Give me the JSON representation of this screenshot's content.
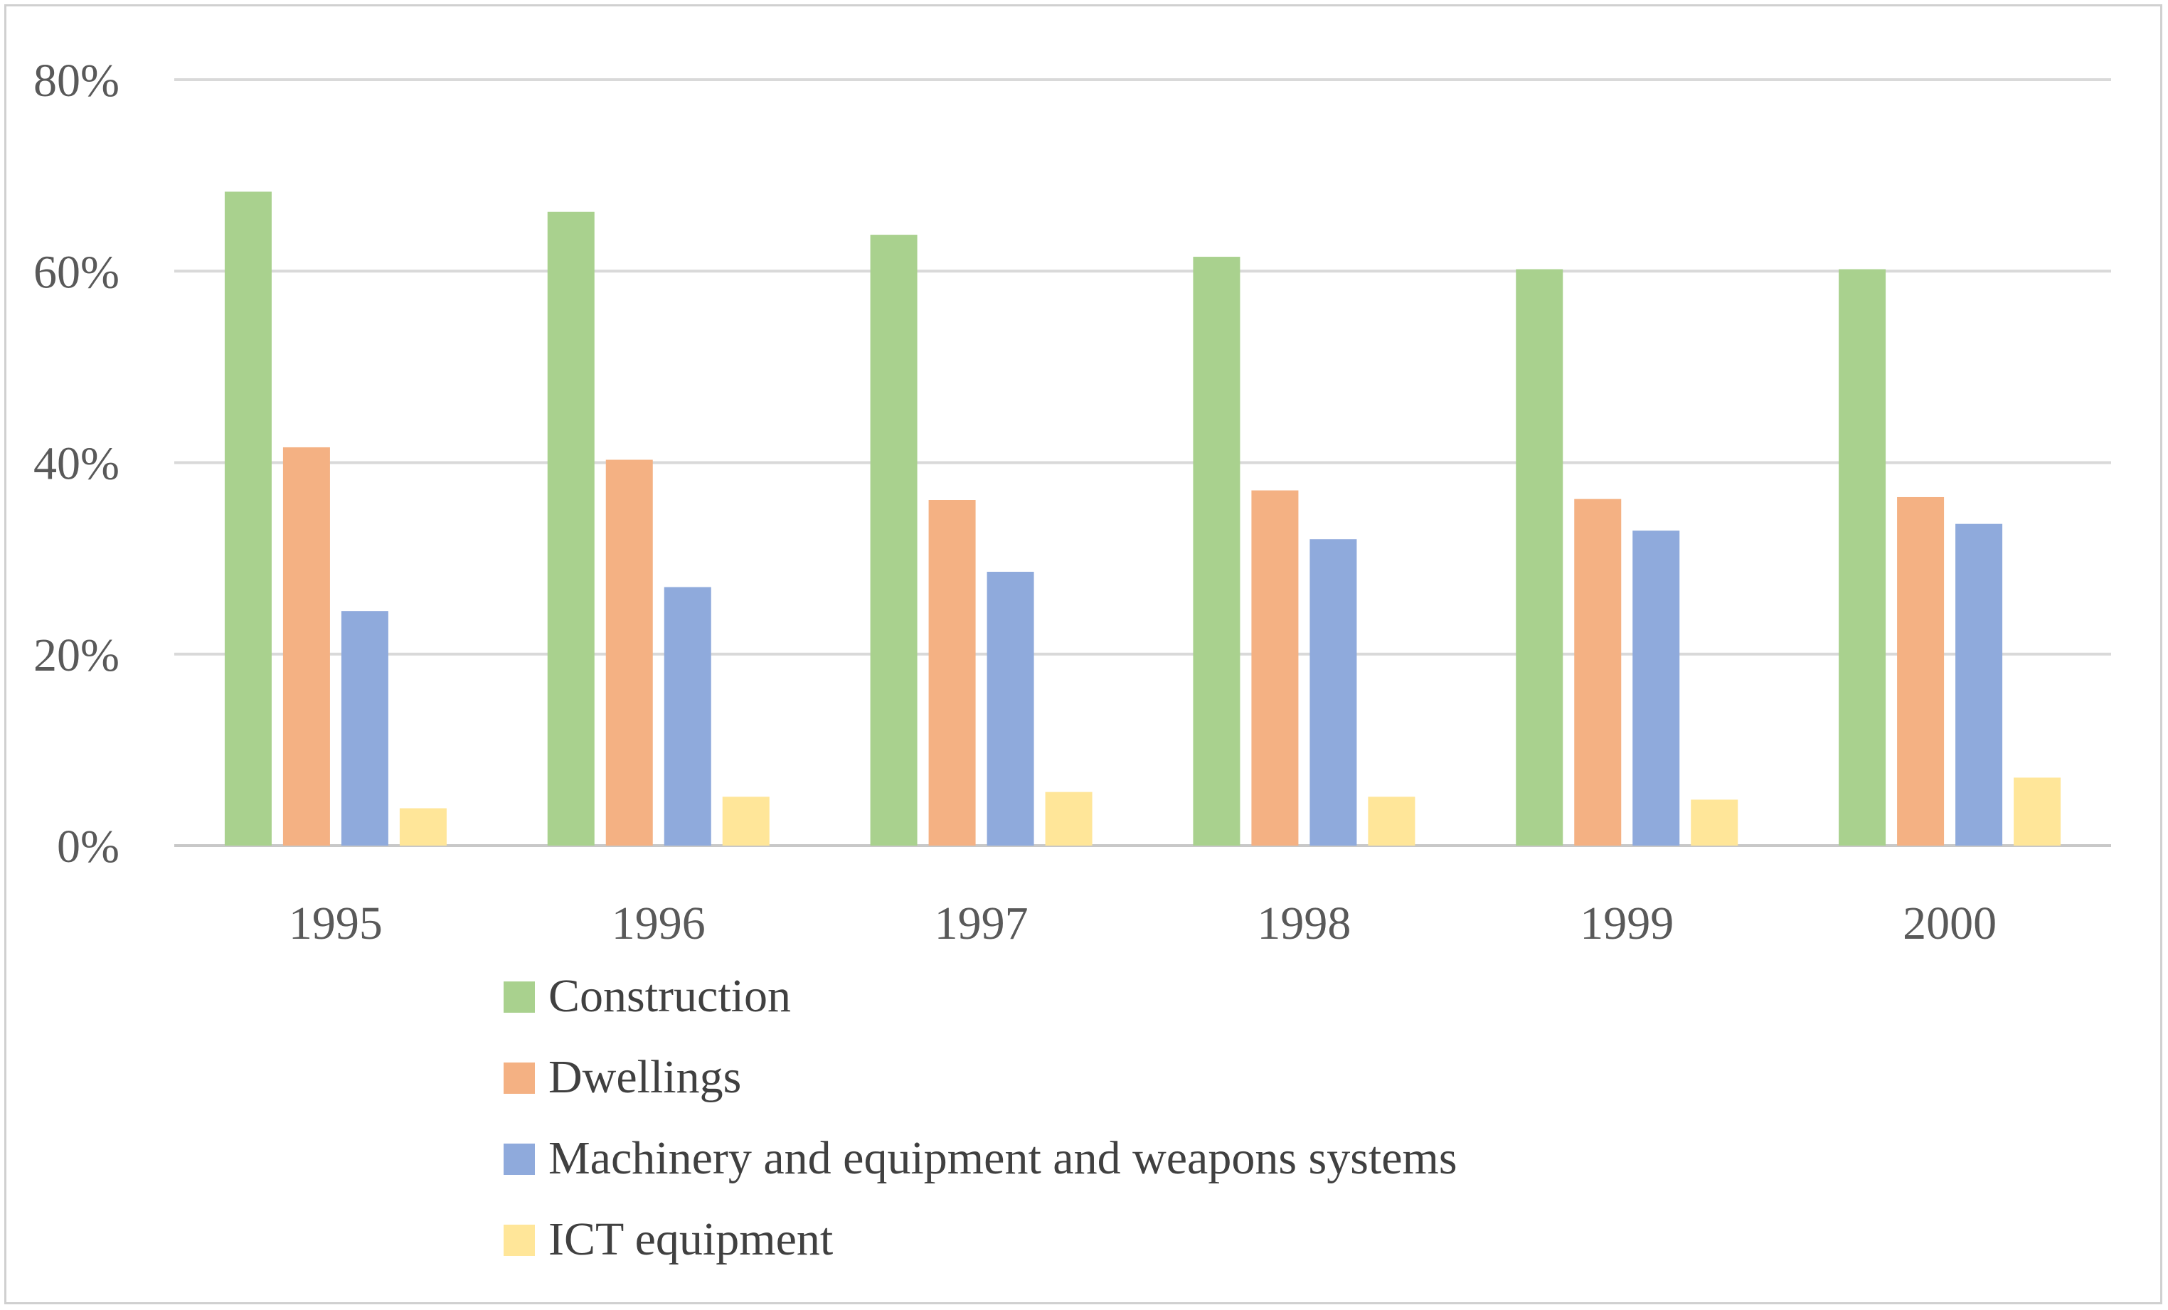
{
  "chart_data": {
    "type": "bar",
    "title": "",
    "xlabel": "",
    "ylabel": "",
    "categories": [
      "1995",
      "1996",
      "1997",
      "1998",
      "1999",
      "2000"
    ],
    "ylim": [
      0,
      80
    ],
    "yticks": [
      0,
      20,
      40,
      60,
      80
    ],
    "ytick_labels": [
      "0%",
      "20%",
      "40%",
      "60%",
      "80%"
    ],
    "grid": true,
    "legend_position": "bottom",
    "series": [
      {
        "name": "Construction",
        "color": "#a9d18e",
        "values": [
          68.3,
          66.2,
          63.8,
          61.5,
          60.2,
          60.2
        ]
      },
      {
        "name": "Dwellings",
        "color": "#f4b183",
        "values": [
          41.6,
          40.3,
          36.1,
          37.1,
          36.2,
          36.4
        ]
      },
      {
        "name": "Machinery and equipment and weapons systems",
        "color": "#8faadc",
        "values": [
          24.5,
          27.0,
          28.6,
          32.0,
          32.9,
          33.6
        ]
      },
      {
        "name": "ICT equipment",
        "color": "#ffe699",
        "values": [
          3.9,
          5.1,
          5.6,
          5.1,
          4.8,
          7.1
        ]
      }
    ]
  }
}
